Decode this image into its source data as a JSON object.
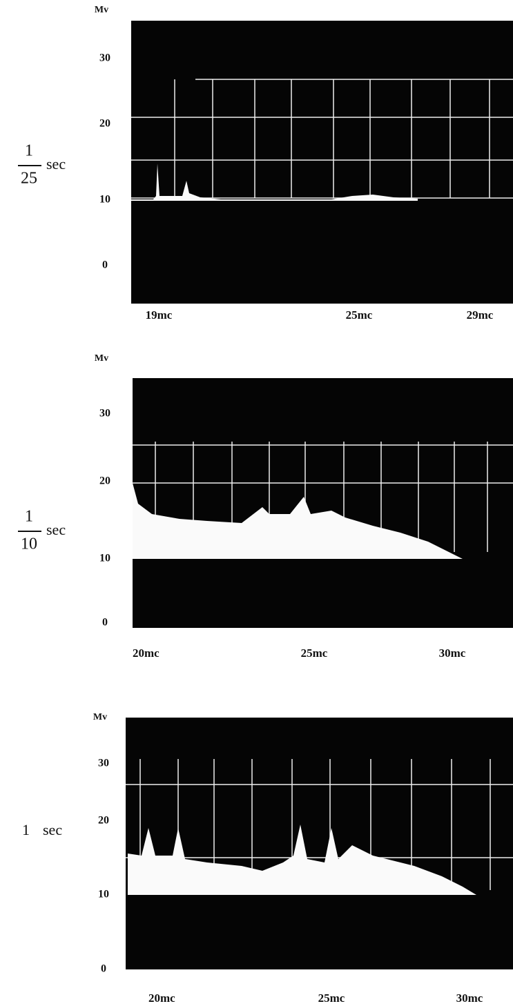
{
  "panels": [
    {
      "unit": "Mv",
      "yticks": [
        "30",
        "20",
        "10",
        "0"
      ],
      "exposure": {
        "numerator": "1",
        "denominator": "25",
        "unit": "sec"
      },
      "xticks": [
        "19mc",
        "25mc",
        "29mc"
      ]
    },
    {
      "unit": "Mv",
      "yticks": [
        "30",
        "20",
        "10",
        "0"
      ],
      "exposure": {
        "numerator": "1",
        "denominator": "10",
        "unit": "sec"
      },
      "xticks": [
        "20mc",
        "25mc",
        "30mc"
      ]
    },
    {
      "unit": "Mv",
      "yticks": [
        "30",
        "20",
        "10",
        "0"
      ],
      "exposure": {
        "value": "1",
        "unit": "sec"
      },
      "xticks": [
        "20mc",
        "25mc",
        "30mc"
      ]
    }
  ]
}
